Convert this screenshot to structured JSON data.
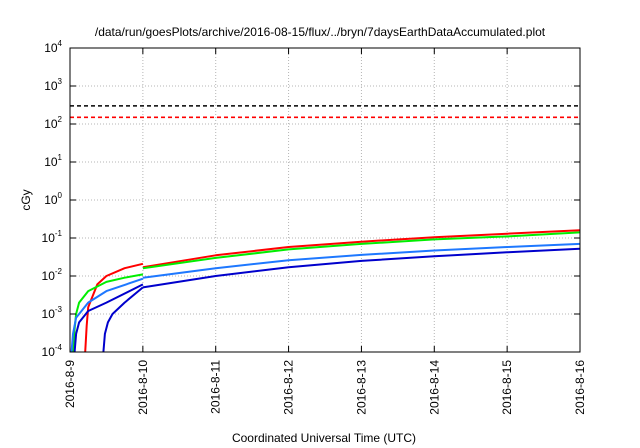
{
  "chart_data": {
    "type": "line",
    "title": "/data/run/goesPlots/archive/2016-08-15/flux/../bryn/7daysEarthDataAccumulated.plot",
    "xlabel": "Coordinated Universal Time (UTC)",
    "ylabel": "cGy",
    "y_scale": "log",
    "ylim_exponents": [
      -4,
      4
    ],
    "y_tick_base": "10",
    "y_tick_exponents": [
      "-4",
      "-3",
      "-2",
      "-1",
      "0",
      "1",
      "2",
      "3",
      "4"
    ],
    "x_tick_labels": [
      "2016-8-9",
      "2016-8-10",
      "2016-8-11",
      "2016-8-12",
      "2016-8-13",
      "2016-8-14",
      "2016-8-15",
      "2016-8-16"
    ],
    "grid": true,
    "reference_lines": [
      {
        "color": "#000000",
        "style": "dashed",
        "y": 300
      },
      {
        "color": "#ff0000",
        "style": "dashed",
        "y": 150
      }
    ],
    "series": [
      {
        "color": "#ff0000",
        "segments": [
          {
            "x": [
              "2016-08-09 05:00",
              "2016-08-09 05:30",
              "2016-08-09 06:00",
              "2016-08-09 09:00",
              "2016-08-09 12:00",
              "2016-08-09 18:00",
              "2016-08-10 00:00"
            ],
            "y": [
              0.0001,
              0.0005,
              0.0015,
              0.006,
              0.01,
              0.016,
              0.021
            ]
          },
          {
            "x": [
              "2016-08-10 00:00",
              "2016-08-11 00:00",
              "2016-08-12 00:00",
              "2016-08-13 00:00",
              "2016-08-14 00:00",
              "2016-08-15 00:00",
              "2016-08-16 00:00"
            ],
            "y": [
              0.017,
              0.035,
              0.058,
              0.08,
              0.105,
              0.13,
              0.16
            ]
          }
        ]
      },
      {
        "color": "#00ee00",
        "segments": [
          {
            "x": [
              "2016-08-09 01:00",
              "2016-08-09 01:30",
              "2016-08-09 02:00",
              "2016-08-09 03:00",
              "2016-08-09 06:00",
              "2016-08-09 12:00",
              "2016-08-09 18:00",
              "2016-08-10 00:00"
            ],
            "y": [
              0.0001,
              0.0004,
              0.001,
              0.002,
              0.004,
              0.007,
              0.009,
              0.011
            ]
          },
          {
            "x": [
              "2016-08-10 00:00",
              "2016-08-11 00:00",
              "2016-08-12 00:00",
              "2016-08-13 00:00",
              "2016-08-14 00:00",
              "2016-08-15 00:00",
              "2016-08-16 00:00"
            ],
            "y": [
              0.016,
              0.03,
              0.05,
              0.07,
              0.092,
              0.11,
              0.14
            ]
          }
        ]
      },
      {
        "color": "#1e78ff",
        "segments": [
          {
            "x": [
              "2016-08-09 00:30",
              "2016-08-09 01:00",
              "2016-08-09 02:00",
              "2016-08-09 06:00",
              "2016-08-09 12:00",
              "2016-08-10 00:00"
            ],
            "y": [
              0.0001,
              0.0003,
              0.0008,
              0.002,
              0.004,
              0.0085
            ]
          },
          {
            "x": [
              "2016-08-10 00:00",
              "2016-08-11 00:00",
              "2016-08-12 00:00",
              "2016-08-13 00:00",
              "2016-08-14 00:00",
              "2016-08-15 00:00",
              "2016-08-16 00:00"
            ],
            "y": [
              0.009,
              0.016,
              0.026,
              0.036,
              0.047,
              0.058,
              0.07
            ]
          }
        ]
      },
      {
        "color": "#0000cc",
        "segments": [
          {
            "x": [
              "2016-08-09 01:30",
              "2016-08-09 02:00",
              "2016-08-09 03:00",
              "2016-08-09 06:00",
              "2016-08-09 12:00",
              "2016-08-10 00:00"
            ],
            "y": [
              0.0001,
              0.0003,
              0.0006,
              0.0012,
              0.002,
              0.006
            ]
          },
          {
            "x": [
              "2016-08-09 11:00",
              "2016-08-09 11:30",
              "2016-08-09 12:30",
              "2016-08-09 14:00",
              "2016-08-09 18:00",
              "2016-08-10 00:00"
            ],
            "y": [
              0.0001,
              0.0003,
              0.0006,
              0.001,
              0.002,
              0.005
            ]
          },
          {
            "x": [
              "2016-08-10 00:00",
              "2016-08-11 00:00",
              "2016-08-12 00:00",
              "2016-08-13 00:00",
              "2016-08-14 00:00",
              "2016-08-15 00:00",
              "2016-08-16 00:00"
            ],
            "y": [
              0.005,
              0.01,
              0.017,
              0.025,
              0.033,
              0.042,
              0.052
            ]
          }
        ]
      }
    ]
  }
}
